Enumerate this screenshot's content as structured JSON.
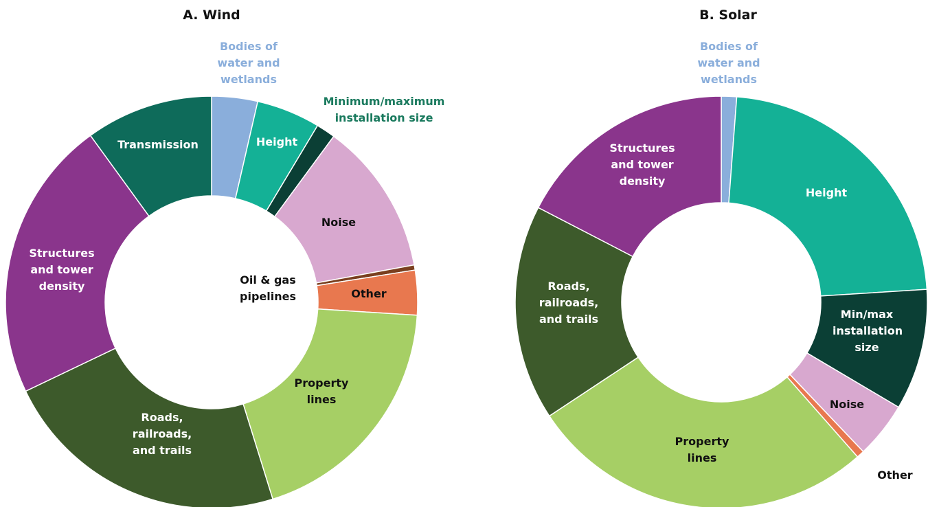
{
  "chart_data": [
    {
      "type": "pie",
      "title": "A. Wind",
      "categories": [
        "Bodies of water and wetlands",
        "Height",
        "Minimum/maximum installation size",
        "Noise",
        "Oil & gas pipelines",
        "Other",
        "Property lines",
        "Roads, railroads, and trails",
        "Structures and tower density",
        "Transmission"
      ],
      "values": [
        3.6,
        5,
        1.5,
        12,
        0.4,
        3.5,
        19.2,
        22.7,
        22.1,
        10
      ],
      "colors": [
        "#8aaedb",
        "#14b196",
        "#0b3f35",
        "#d8a8cf",
        "#7a3f1f",
        "#e8784f",
        "#a6cf65",
        "#3d5a2b",
        "#8a358c",
        "#0e6b5a"
      ]
    },
    {
      "type": "pie",
      "title": "B. Solar",
      "categories": [
        "Bodies of water and wetlands",
        "Height",
        "Min/max installation size",
        "Noise",
        "Other",
        "Property lines",
        "Roads, railroads, and trails",
        "Structures and tower density"
      ],
      "values": [
        1.2,
        22.8,
        9.5,
        4.4,
        0.6,
        27.2,
        16.9,
        17.4
      ],
      "colors": [
        "#8aaedb",
        "#14b196",
        "#0b3f35",
        "#d8a8cf",
        "#e8784f",
        "#a6cf65",
        "#3d5a2b",
        "#8a358c"
      ]
    }
  ]
}
